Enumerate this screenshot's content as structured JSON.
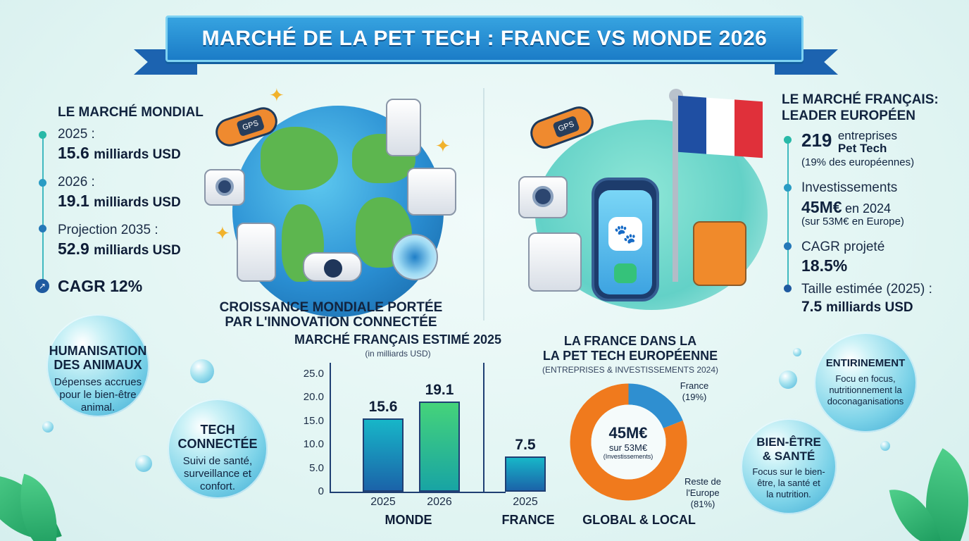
{
  "title": "MARCHÉ DE LA PET TECH : FRANCE VS MONDE 2026",
  "world": {
    "heading": "LE MARCHÉ MONDIAL",
    "items": [
      {
        "label": "2025 :",
        "value": "15.6",
        "unit": "milliards USD"
      },
      {
        "label": "2026 :",
        "value": "19.1",
        "unit": "milliards USD"
      },
      {
        "label": "Projection 2035 :",
        "value": "52.9",
        "unit": "milliards USD"
      }
    ],
    "cagr": "CAGR 12%",
    "caption_line1": "CROISSANCE MONDIALE PORTÉE",
    "caption_line2": "PAR L'INNOVATION CONNECTÉE",
    "gps_tag": "GPS"
  },
  "france": {
    "heading_line1": "LE MARCHÉ FRANÇAIS:",
    "heading_line2": "LEADER EUROPÉEN",
    "companies_value": "219",
    "companies_label_line1": "entreprises",
    "companies_label_line2": "Pet Tech",
    "companies_note": "(19% des européennes)",
    "invest_label": "Investissements",
    "invest_value": "45M€",
    "invest_suffix": "en 2024",
    "invest_note": "(sur 53M€ en Europe)",
    "cagr_label": "CAGR projeté",
    "cagr_value": "18.5%",
    "size_label": "Taille estimée (2025) :",
    "size_value": "7.5",
    "size_unit": "milliards USD",
    "gps_tag": "GPS"
  },
  "bubbles": {
    "humanisation": {
      "title_line1": "HUMANISATION",
      "title_line2": "DES ANIMAUX",
      "desc_line1": "Dépenses accrues",
      "desc_line2": "pour le bien-être",
      "desc_line3": "animal."
    },
    "tech": {
      "title_line1": "TECH",
      "title_line2": "CONNECTÉE",
      "desc_line1": "Suivi de santé,",
      "desc_line2": "surveillance et",
      "desc_line3": "confort."
    },
    "entirinement": {
      "title": "ENTIRINEMENT",
      "desc_line1": "Focu en focus,",
      "desc_line2": "nutritionnement la",
      "desc_line3": "doconaganisations"
    },
    "bienetre": {
      "title_line1": "BIEN-ÊTRE",
      "title_line2": "& SANTÉ",
      "desc_line1": "Focus sur le bien-",
      "desc_line2": "être, la santé et",
      "desc_line3": "la nutrition."
    }
  },
  "chart_data": [
    {
      "type": "bar",
      "title": "MARCHÉ FRANÇAIS ESTIMÉ 2025",
      "subtitle": "(in milliards USD)",
      "categories": [
        "2025",
        "2026",
        "2025"
      ],
      "groups": [
        "MONDE",
        "MONDE",
        "FRANCE"
      ],
      "group_labels": [
        "MONDE",
        "FRANCE"
      ],
      "values": [
        15.6,
        19.1,
        7.5
      ],
      "value_labels": [
        "15.6",
        "19.1",
        "7.5"
      ],
      "yticks": [
        "0",
        "5.0",
        "10.0",
        "15.0",
        "20.0",
        "25.0"
      ],
      "ylim": [
        0,
        25
      ],
      "grid": false,
      "colors": [
        "#0f8dbf",
        "#2ec07a",
        "#0f8dbf"
      ]
    },
    {
      "type": "pie",
      "title_line1": "LA FRANCE DANS LA",
      "title_line2": "LA PET TECH EUROPÉENNE",
      "subtitle": "(ENTREPRISES & INVESTISSEMENTS 2024)",
      "slices": [
        {
          "label_line1": "France",
          "label_line2": "(19%)",
          "value": 19,
          "color": "#2f8fd0"
        },
        {
          "label_line1": "Reste de",
          "label_line2": "l'Europe",
          "label_line3": "(81%)",
          "value": 81,
          "color": "#f07a1d"
        }
      ],
      "center_value": "45M€",
      "center_line2": "sur 53M€",
      "center_line3": "(Investissements)",
      "footer": "GLOBAL & LOCAL"
    }
  ],
  "colors": {
    "accent": "#1b7cc7",
    "teal": "#40b9c0",
    "green": "#2ec07a",
    "orange": "#f07a1d"
  }
}
